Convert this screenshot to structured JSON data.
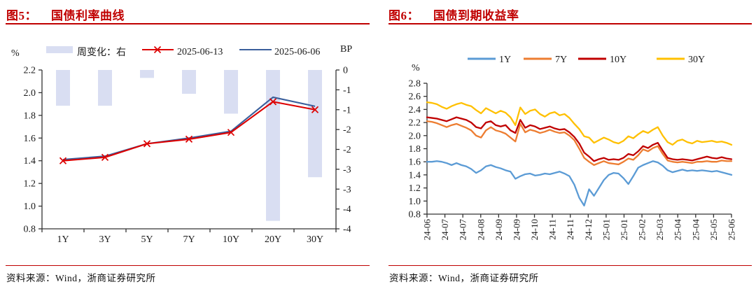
{
  "figures": [
    {
      "title_prefix": "图5：",
      "title": "国债利率曲线",
      "source": "资料来源：Wind，浙商证券研究所"
    },
    {
      "title_prefix": "图6：",
      "title": "国债到期收益率",
      "source": "资料来源：Wind，浙商证券研究所"
    }
  ],
  "colors": {
    "accent_red": "#C00000",
    "bar_fill": "#D9DEF2",
    "line_red": "#DD0000",
    "line_blue": "#3A5F9C",
    "series_1y": "#5B9BD5",
    "series_7y": "#ED7D31",
    "series_10y": "#C00000",
    "series_30y": "#FFC000",
    "axis": "#333333"
  },
  "chart_data": [
    {
      "type": "bar+line",
      "title": "图5：国债利率曲线",
      "categories": [
        "1Y",
        "3Y",
        "5Y",
        "7Y",
        "10Y",
        "20Y",
        "30Y"
      ],
      "left_axis": {
        "unit": "%",
        "min": 0.8,
        "max": 2.2,
        "tick_labels": [
          "2.2",
          "2.0",
          "1.8",
          "1.6",
          "1.4",
          "1.2",
          "1.0",
          "0.8"
        ]
      },
      "right_axis": {
        "unit": "BP",
        "min": -4,
        "max": 0,
        "tick_labels": [
          "0",
          "-1",
          "-1",
          "-2",
          "-2",
          "-3",
          "-3",
          "-4",
          "-4"
        ]
      },
      "grid": false,
      "legend_position": "top",
      "series": [
        {
          "name": "周变化：右",
          "type": "bar",
          "axis": "right",
          "color": "#D9DEF2",
          "values": [
            -0.9,
            -0.9,
            -0.2,
            -0.6,
            -1.1,
            -3.8,
            -2.7
          ]
        },
        {
          "name": "2025-06-13",
          "type": "line",
          "marker": "x",
          "axis": "left",
          "color": "#DD0000",
          "values": [
            1.4,
            1.43,
            1.55,
            1.59,
            1.65,
            1.92,
            1.85
          ]
        },
        {
          "name": "2025-06-06",
          "type": "line",
          "marker": "none",
          "axis": "left",
          "color": "#3A5F9C",
          "values": [
            1.41,
            1.44,
            1.55,
            1.6,
            1.66,
            1.96,
            1.88
          ]
        }
      ]
    },
    {
      "type": "line",
      "title": "图6：国债到期收益率",
      "x_range_note": "2024-06 to 2025-06, 63 evenly spaced samples",
      "x_tick_labels": [
        "24-06",
        "24-07",
        "24-07",
        "24-08",
        "24-09",
        "24-09",
        "24-10",
        "24-11",
        "24-11",
        "24-12",
        "25-01",
        "25-01",
        "25-02",
        "25-03",
        "25-04",
        "25-04",
        "25-05",
        "25-06"
      ],
      "y_axis": {
        "unit": "%",
        "min": 0.8,
        "max": 2.8,
        "tick_labels": [
          "2.8",
          "2.6",
          "2.4",
          "2.2",
          "2.0",
          "1.8",
          "1.6",
          "1.4",
          "1.2",
          "1.0",
          "0.8"
        ]
      },
      "grid": false,
      "legend_position": "top",
      "series": [
        {
          "name": "1Y",
          "color": "#5B9BD5",
          "values": [
            1.6,
            1.6,
            1.61,
            1.6,
            1.58,
            1.55,
            1.58,
            1.55,
            1.53,
            1.49,
            1.43,
            1.47,
            1.53,
            1.55,
            1.52,
            1.5,
            1.47,
            1.45,
            1.34,
            1.38,
            1.41,
            1.42,
            1.39,
            1.4,
            1.42,
            1.41,
            1.43,
            1.45,
            1.42,
            1.38,
            1.25,
            1.05,
            0.93,
            1.18,
            1.08,
            1.2,
            1.32,
            1.4,
            1.43,
            1.42,
            1.35,
            1.26,
            1.38,
            1.51,
            1.55,
            1.58,
            1.61,
            1.59,
            1.54,
            1.47,
            1.44,
            1.46,
            1.48,
            1.46,
            1.47,
            1.46,
            1.47,
            1.46,
            1.45,
            1.46,
            1.44,
            1.42,
            1.4
          ]
        },
        {
          "name": "7Y",
          "color": "#ED7D31",
          "values": [
            2.22,
            2.21,
            2.19,
            2.16,
            2.13,
            2.16,
            2.18,
            2.15,
            2.12,
            2.08,
            2.0,
            1.97,
            2.08,
            2.13,
            2.08,
            2.06,
            2.03,
            1.97,
            1.91,
            2.18,
            2.05,
            2.09,
            2.07,
            2.04,
            2.06,
            2.09,
            2.06,
            2.04,
            2.05,
            2.0,
            1.93,
            1.8,
            1.66,
            1.6,
            1.55,
            1.58,
            1.61,
            1.58,
            1.57,
            1.56,
            1.6,
            1.65,
            1.63,
            1.7,
            1.79,
            1.76,
            1.81,
            1.84,
            1.72,
            1.62,
            1.6,
            1.59,
            1.6,
            1.59,
            1.58,
            1.6,
            1.6,
            1.61,
            1.6,
            1.6,
            1.62,
            1.61,
            1.61
          ]
        },
        {
          "name": "10Y",
          "color": "#C00000",
          "values": [
            2.28,
            2.27,
            2.26,
            2.24,
            2.22,
            2.25,
            2.28,
            2.26,
            2.24,
            2.2,
            2.13,
            2.11,
            2.2,
            2.22,
            2.16,
            2.14,
            2.16,
            2.08,
            2.04,
            2.24,
            2.12,
            2.16,
            2.14,
            2.1,
            2.12,
            2.14,
            2.11,
            2.09,
            2.1,
            2.05,
            1.98,
            1.88,
            1.74,
            1.68,
            1.61,
            1.64,
            1.66,
            1.63,
            1.64,
            1.63,
            1.66,
            1.72,
            1.7,
            1.76,
            1.84,
            1.81,
            1.86,
            1.89,
            1.77,
            1.66,
            1.64,
            1.63,
            1.64,
            1.63,
            1.62,
            1.64,
            1.66,
            1.68,
            1.66,
            1.65,
            1.67,
            1.65,
            1.64
          ]
        },
        {
          "name": "30Y",
          "color": "#FFC000",
          "values": [
            2.51,
            2.5,
            2.48,
            2.44,
            2.41,
            2.45,
            2.48,
            2.5,
            2.47,
            2.45,
            2.39,
            2.34,
            2.42,
            2.38,
            2.34,
            2.38,
            2.35,
            2.28,
            2.16,
            2.43,
            2.33,
            2.38,
            2.4,
            2.33,
            2.29,
            2.34,
            2.36,
            2.31,
            2.33,
            2.27,
            2.18,
            2.1,
            1.99,
            1.97,
            1.89,
            1.93,
            1.97,
            1.94,
            1.9,
            1.88,
            1.92,
            1.99,
            1.96,
            2.02,
            2.07,
            2.04,
            2.09,
            2.13,
            2.0,
            1.9,
            1.86,
            1.92,
            1.94,
            1.9,
            1.88,
            1.92,
            1.9,
            1.91,
            1.92,
            1.9,
            1.91,
            1.89,
            1.86
          ]
        }
      ]
    }
  ]
}
